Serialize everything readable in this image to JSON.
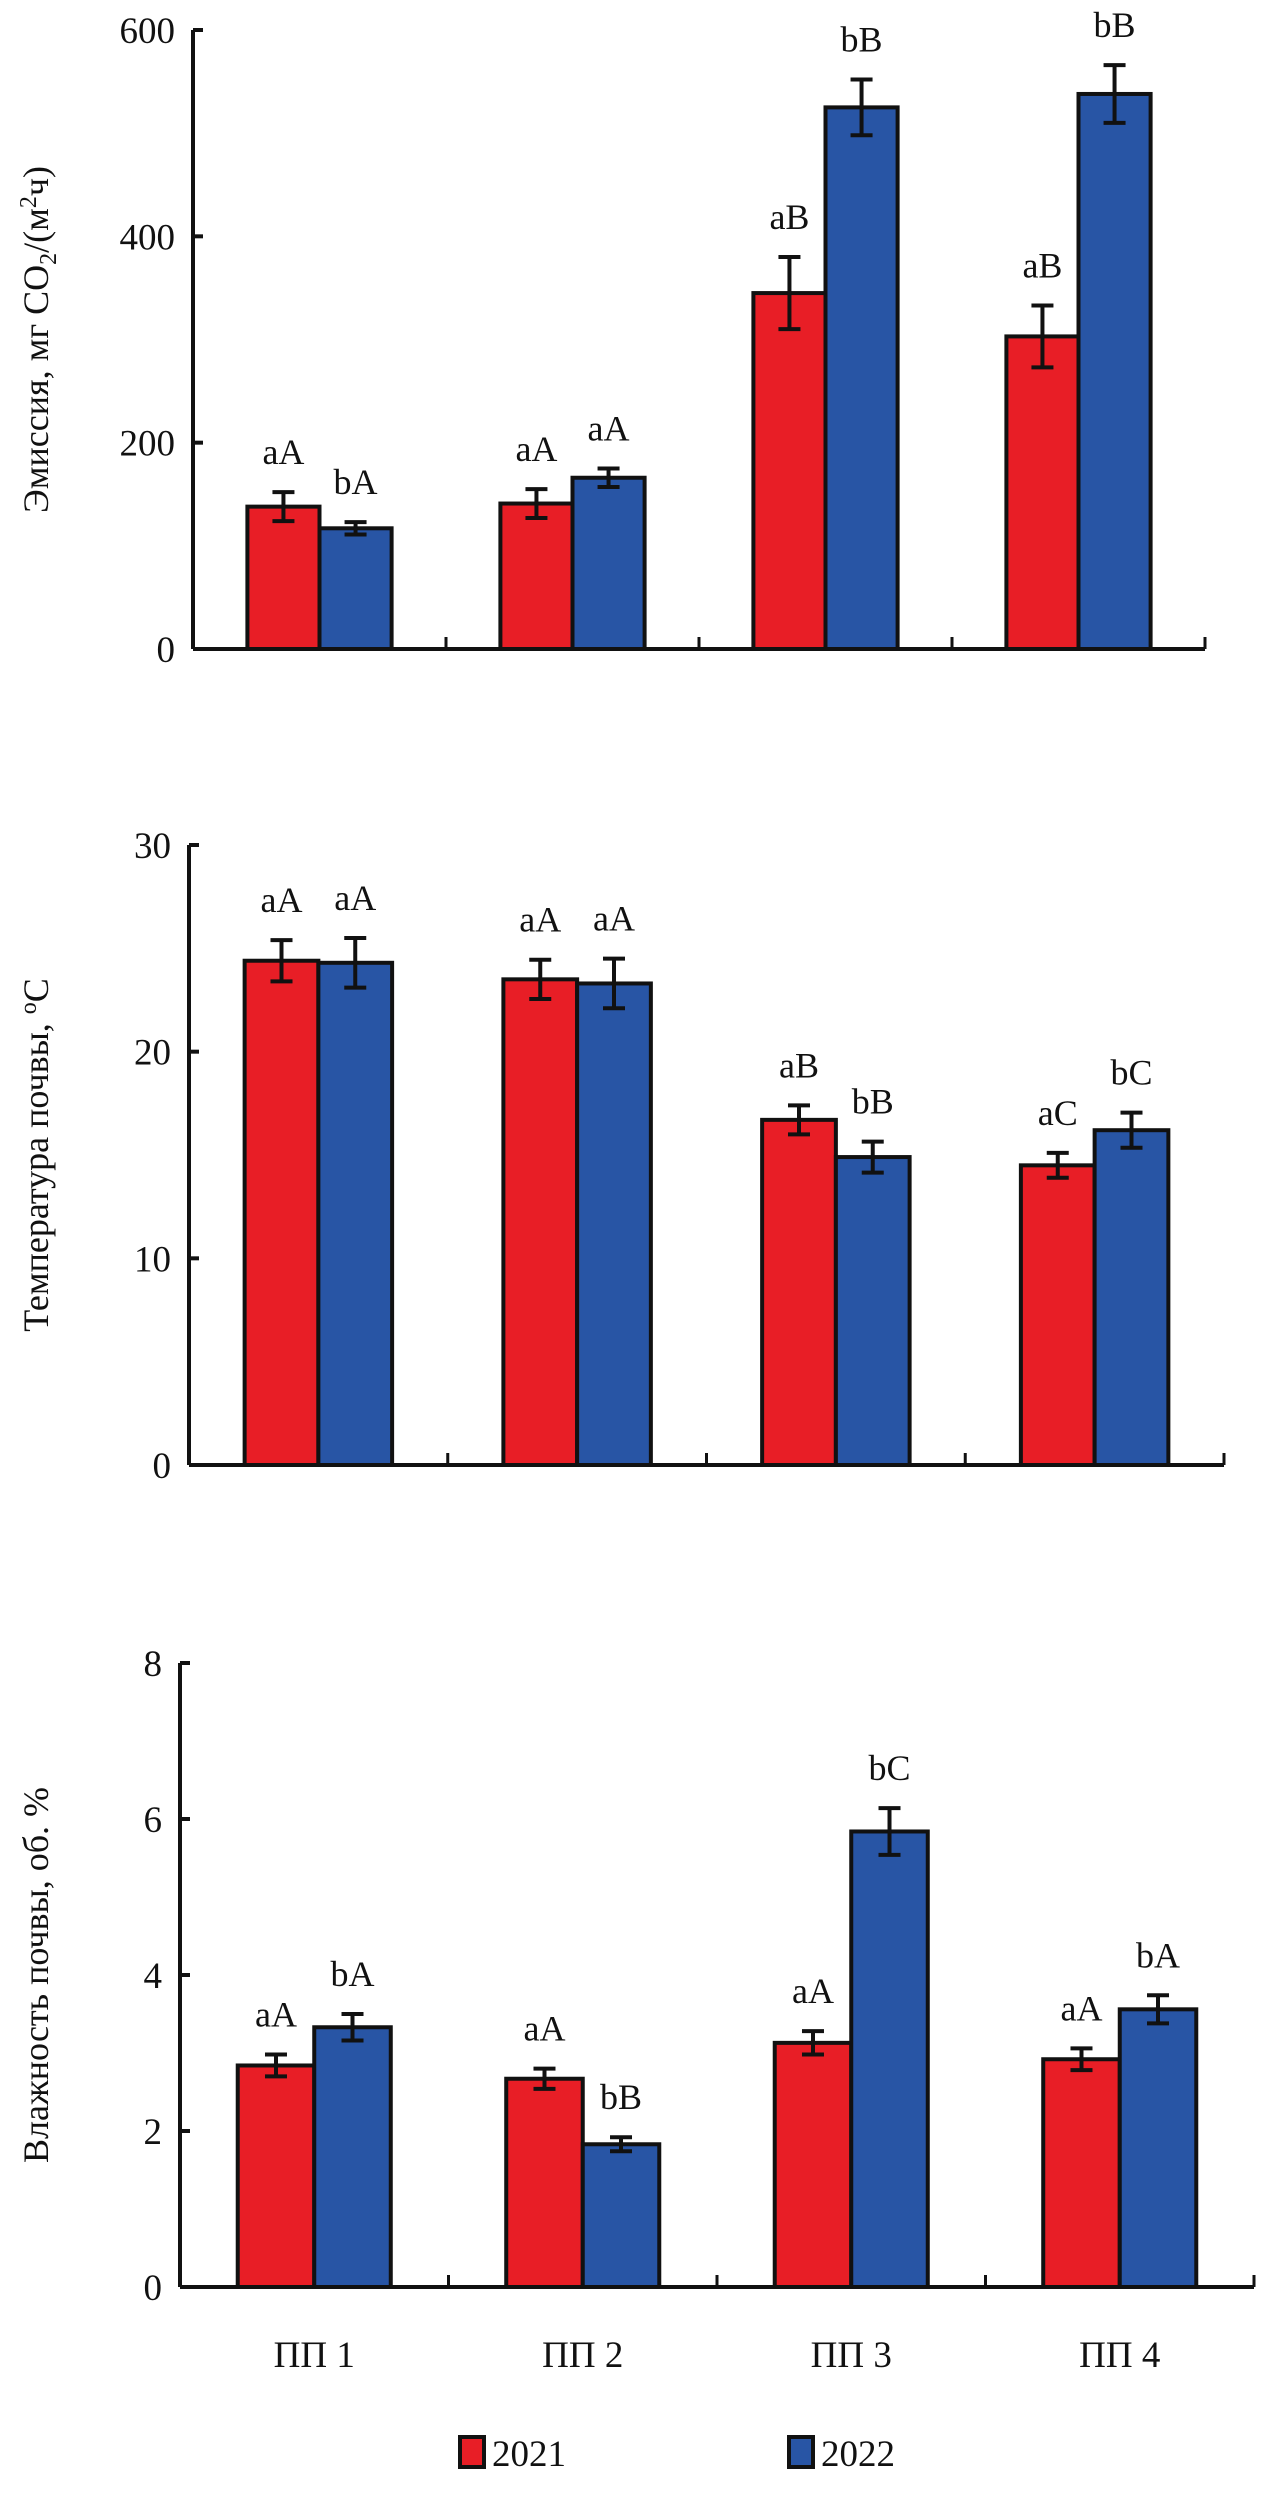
{
  "colors": {
    "series_2021": "#E81E26",
    "series_2022": "#2855A5",
    "axis": "#111111"
  },
  "legend": [
    {
      "label": "2021",
      "color": "#E81E26"
    },
    {
      "label": "2022",
      "color": "#2855A5"
    }
  ],
  "chart_data": [
    {
      "type": "bar",
      "title": "",
      "xlabel": "",
      "ylabel": "Эмиссия, мг CO2/(м2ч)",
      "ylabel_parts": [
        "Эмиссия, мг CO",
        "2",
        "/(м",
        "2",
        "ч)"
      ],
      "ylim": [
        0,
        600
      ],
      "yticks": [
        0,
        200,
        400,
        600
      ],
      "categories": [
        "ПП 1",
        "ПП 2",
        "ПП 3",
        "ПП 4"
      ],
      "show_category_labels": false,
      "grid": false,
      "series": [
        {
          "name": "2021",
          "values": [
            138,
            141,
            345,
            303
          ],
          "errors": [
            14,
            14,
            35,
            30
          ],
          "labels": [
            "aA",
            "aA",
            "aB",
            "aB"
          ]
        },
        {
          "name": "2022",
          "values": [
            117,
            166,
            525,
            538
          ],
          "errors": [
            6,
            9,
            27,
            28
          ],
          "labels": [
            "bA",
            "aA",
            "bB",
            "bB"
          ]
        }
      ]
    },
    {
      "type": "bar",
      "title": "",
      "xlabel": "",
      "ylabel": "Температура почвы, °C",
      "ylabel_parts": [
        "Температура почвы, ",
        "o",
        "C"
      ],
      "ylim": [
        0,
        30
      ],
      "yticks": [
        0,
        10,
        20,
        30
      ],
      "categories": [
        "ПП 1",
        "ПП 2",
        "ПП 3",
        "ПП 4"
      ],
      "show_category_labels": false,
      "grid": false,
      "series": [
        {
          "name": "2021",
          "values": [
            24.4,
            23.5,
            16.7,
            14.5
          ],
          "errors": [
            1.0,
            0.95,
            0.7,
            0.6
          ],
          "labels": [
            "aA",
            "aA",
            "aB",
            "aC"
          ]
        },
        {
          "name": "2022",
          "values": [
            24.3,
            23.3,
            14.9,
            16.2
          ],
          "errors": [
            1.2,
            1.2,
            0.75,
            0.85
          ],
          "labels": [
            "aA",
            "aA",
            "bB",
            "bC"
          ]
        }
      ]
    },
    {
      "type": "bar",
      "title": "",
      "xlabel": "",
      "ylabel": "Влажность почвы, об. %",
      "ylabel_parts": [
        "Влажность почвы, об. %"
      ],
      "ylim": [
        0,
        8
      ],
      "yticks": [
        0,
        2,
        4,
        6,
        8
      ],
      "categories": [
        "ПП 1",
        "ПП 2",
        "ПП 3",
        "ПП 4"
      ],
      "show_category_labels": true,
      "grid": false,
      "series": [
        {
          "name": "2021",
          "values": [
            2.84,
            2.67,
            3.13,
            2.92
          ],
          "errors": [
            0.14,
            0.13,
            0.15,
            0.14
          ],
          "labels": [
            "aA",
            "aA",
            "aA",
            "aA"
          ]
        },
        {
          "name": "2022",
          "values": [
            3.33,
            1.83,
            5.84,
            3.56
          ],
          "errors": [
            0.17,
            0.09,
            0.3,
            0.18
          ],
          "labels": [
            "bA",
            "bB",
            "bC",
            "bA"
          ]
        }
      ]
    }
  ],
  "legend_placement": "bottom-center"
}
